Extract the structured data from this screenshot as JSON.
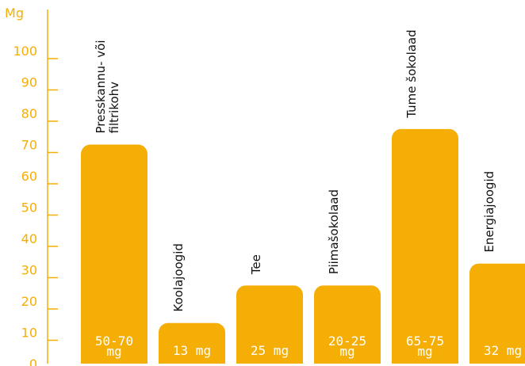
{
  "colors": {
    "accent": "#F5AE06",
    "bar_label": "#ffffff",
    "category_label": "#111111"
  },
  "chart_data": {
    "type": "bar",
    "unit_label": "Mg",
    "ylim": [
      0,
      110
    ],
    "yticks": [
      0,
      10,
      20,
      30,
      40,
      50,
      60,
      70,
      80,
      90,
      100
    ],
    "grid": false,
    "categories": [
      "Presskannu- või filtrikohv",
      "Koolajoogid",
      "Tee",
      "Piimašokolaad",
      "Tume šokolaad",
      "Energiajoogid"
    ],
    "category_label_lines": [
      [
        "Presskannu- või",
        "filtrikohv"
      ],
      [
        "Koolajoogid"
      ],
      [
        "Tee"
      ],
      [
        "Piimašokolaad"
      ],
      [
        "Tume šokolaad"
      ],
      [
        "Energiajoogid"
      ]
    ],
    "values": [
      70,
      13,
      25,
      25,
      75,
      32
    ],
    "value_labels": [
      [
        "50-70",
        "mg"
      ],
      [
        "13 mg"
      ],
      [
        "25 mg"
      ],
      [
        "20-25",
        "mg"
      ],
      [
        "65-75",
        "mg"
      ],
      [
        "32 mg"
      ]
    ]
  }
}
